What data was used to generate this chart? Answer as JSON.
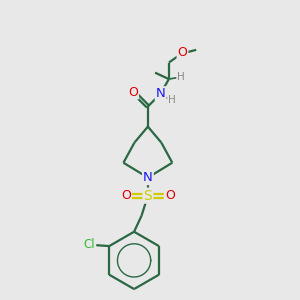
{
  "bg_color": "#e8e8e8",
  "bond_color": "#2a6844",
  "atom_colors": {
    "O": "#dd0000",
    "N": "#1a1aee",
    "S": "#cccc00",
    "Cl": "#33bb33",
    "H": "#888888",
    "C": "#2a6844"
  },
  "figsize": [
    3.0,
    3.0
  ],
  "dpi": 100,
  "bond_lw": 1.6,
  "font_size_heavy": 9.0,
  "font_size_h": 7.5
}
